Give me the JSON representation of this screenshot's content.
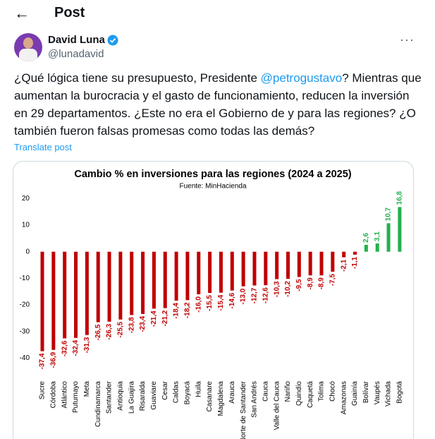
{
  "header": {
    "title": "Post"
  },
  "author": {
    "name": "David Luna",
    "handle": "@lunadavid"
  },
  "post": {
    "text_parts": [
      "¿Qué lógica tiene su presupuesto, Presidente ",
      "@petrogustavo",
      "? Mientras que aumentan la burocracia y el gasto de funcionamiento, reducen la inversión en 29 departamentos. ¿Este no era el Gobierno de y para las regiones? ¿O también fueron falsas promesas como todas las demás?"
    ],
    "translate": "Translate post"
  },
  "chart_data": {
    "type": "bar",
    "title": "Cambio % en inversiones para las regiones (2024 a 2025)",
    "subtitle": "Fuente: MinHacienda",
    "categories": [
      "Sucre",
      "Córdoba",
      "Atlántico",
      "Putumayo",
      "Meta",
      "Cundinamarca",
      "Santander",
      "Antioquia",
      "La Guajira",
      "Risaralda",
      "Guaviare",
      "Cesar",
      "Caldas",
      "Boyacá",
      "Huila",
      "Casanare",
      "Magdalena",
      "Arauca",
      "Norte de Santander",
      "San Andrés",
      "Cauca",
      "Valle del Cauca",
      "Nariño",
      "Quindío",
      "Caquetá",
      "Tolima",
      "Chocó",
      "Amazonas",
      "Guainía",
      "Bolívar",
      "Vaupés",
      "Vichada",
      "Bogotá"
    ],
    "values": [
      -37.4,
      -36.9,
      -32.6,
      -32.4,
      -31.3,
      -26.5,
      -26.3,
      -25.5,
      -23.8,
      -23.4,
      -21.4,
      -21.2,
      -18.4,
      -18.2,
      -16.0,
      -15.5,
      -15.4,
      -14.6,
      -13.0,
      -12.7,
      -12.6,
      -10.3,
      -10.2,
      -9.5,
      -8.9,
      -8.9,
      -7.5,
      -2.1,
      -1.1,
      2.6,
      3.1,
      10.7,
      16.8
    ],
    "value_labels": [
      "-37,4",
      "-36,9",
      "-32,6",
      "-32,4",
      "-31,3",
      "-26,5",
      "-26,3",
      "-25,5",
      "-23,8",
      "-23,4",
      "-21,4",
      "-21,2",
      "-18,4",
      "-18,2",
      "-16,0",
      "-15,5",
      "-15,4",
      "-14,6",
      "-13,0",
      "-12,7",
      "-12,6",
      "-10,3",
      "-10,2",
      "-9,5",
      "-8,9",
      "-8,9",
      "-7,5",
      "-2,1",
      "-1,1",
      "2,6",
      "3,1",
      "10,7",
      "16,8"
    ],
    "negative_color": "#c00000",
    "positive_color": "#22b14c",
    "ylim": [
      -46,
      23
    ],
    "yticks": [
      20,
      10,
      0,
      -10,
      -20,
      -30,
      -40
    ]
  }
}
